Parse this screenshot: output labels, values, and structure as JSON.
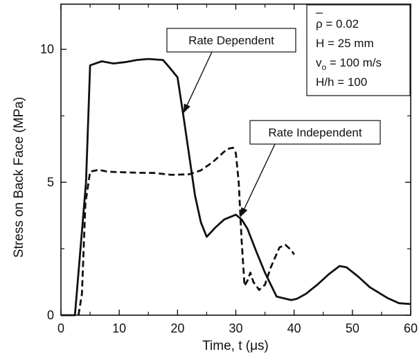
{
  "chart_data": {
    "type": "line",
    "xlabel": "Time, t  (μs)",
    "ylabel": "Stress on Back Face (MPa)",
    "xlim": [
      0,
      60
    ],
    "ylim": [
      0,
      11.7
    ],
    "xticks": [
      0,
      10,
      20,
      30,
      40,
      50,
      60
    ],
    "yticks": [
      0,
      5,
      10
    ],
    "grid": false,
    "series": [
      {
        "name": "Rate Dependent",
        "style": "solid",
        "color": "#111111",
        "x": [
          0,
          2.4,
          4.3,
          5.0,
          7.0,
          9.0,
          11.0,
          13.0,
          15.0,
          17.5,
          18.5,
          20.0,
          21.0,
          22.0,
          23.0,
          24.0,
          25.0,
          26.5,
          28.0,
          30.0,
          31.0,
          32.0,
          33.5,
          35.0,
          37.0,
          39.5,
          40.5,
          42.0,
          44.0,
          46.0,
          47.8,
          49.0,
          51.0,
          53.0,
          56.0,
          58.0,
          60.0
        ],
        "y": [
          0,
          0,
          5.0,
          9.4,
          9.55,
          9.47,
          9.52,
          9.6,
          9.64,
          9.6,
          9.35,
          8.95,
          7.5,
          6.0,
          4.5,
          3.5,
          2.95,
          3.3,
          3.6,
          3.78,
          3.6,
          3.25,
          2.4,
          1.6,
          0.7,
          0.57,
          0.62,
          0.8,
          1.15,
          1.55,
          1.85,
          1.8,
          1.45,
          1.05,
          0.65,
          0.45,
          0.42
        ]
      },
      {
        "name": "Rate Independent",
        "style": "dashed",
        "color": "#111111",
        "x": [
          3.0,
          3.6,
          4.2,
          5.0,
          6.5,
          8.0,
          10.0,
          13.0,
          16.0,
          19.0,
          22.0,
          24.0,
          26.0,
          27.5,
          28.5,
          29.5,
          30.0,
          30.5,
          31.0,
          31.5,
          32.0,
          32.5,
          33.0,
          34.0,
          35.0,
          36.0,
          37.5,
          38.5,
          39.5,
          40.0
        ],
        "y": [
          0,
          0.8,
          4.2,
          5.4,
          5.47,
          5.4,
          5.38,
          5.36,
          5.35,
          5.28,
          5.3,
          5.45,
          5.75,
          6.05,
          6.25,
          6.3,
          6.1,
          5.0,
          2.8,
          1.1,
          1.3,
          1.6,
          1.25,
          0.95,
          1.15,
          1.8,
          2.55,
          2.65,
          2.45,
          2.28
        ]
      }
    ],
    "annotations": [
      {
        "label": "Rate Dependent",
        "arrow_to": [
          21.0,
          7.6
        ]
      },
      {
        "label": "Rate Independent",
        "arrow_to": [
          30.8,
          3.7
        ]
      }
    ],
    "notes": {
      "rho": "ρ = 0.02",
      "H": "H = 25 mm",
      "v0_lead": "v",
      "v0_sub": "o",
      "v0_tail": " = 100 m/s",
      "ratio": "H/h = 100"
    }
  }
}
